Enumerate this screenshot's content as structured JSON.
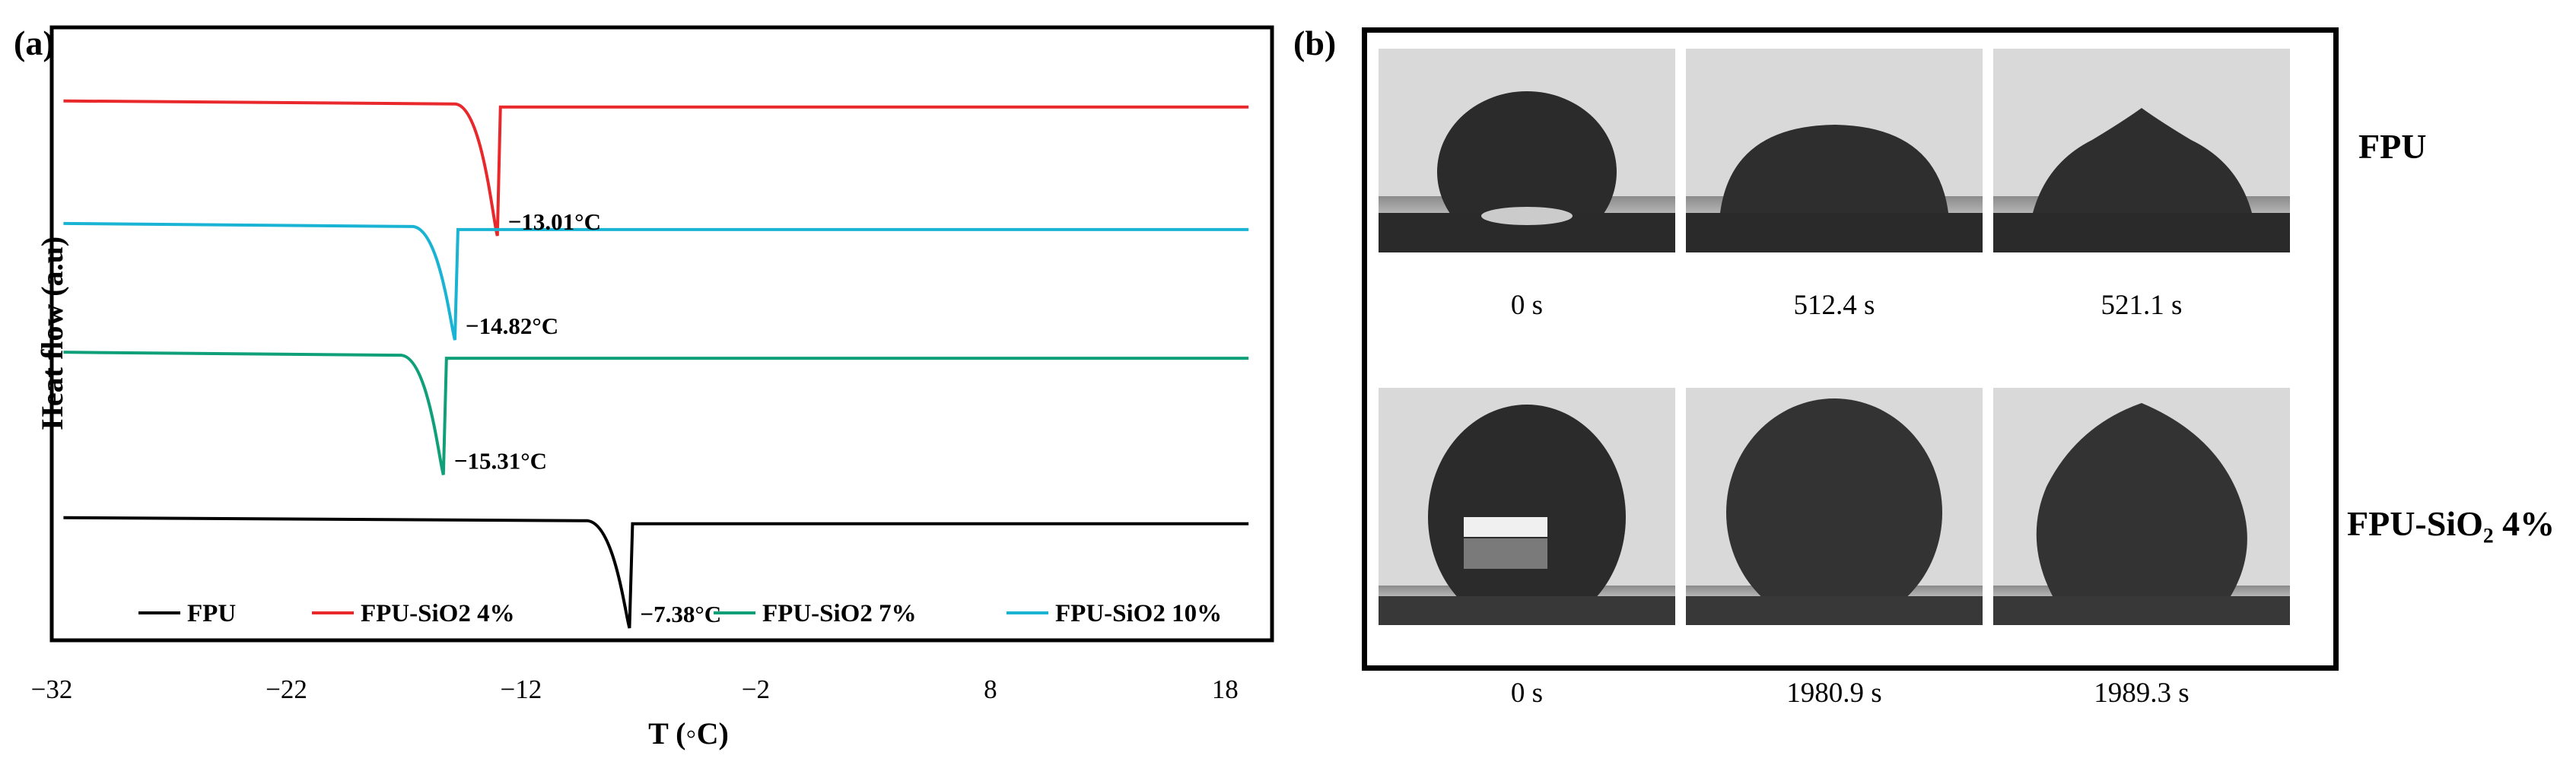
{
  "panel_a": {
    "label": "(a)",
    "chart_data": {
      "type": "line",
      "xlabel": "T (◦C)",
      "ylabel": "Heat flow (a.u)",
      "xlim": [
        -32,
        20
      ],
      "x_ticks": [
        "−32",
        "−22",
        "−12",
        "−2",
        "8",
        "18"
      ],
      "x_tick_values": [
        -32,
        -22,
        -12,
        -2,
        8,
        18
      ],
      "legend_position": "bottom",
      "series": [
        {
          "name": "FPU-SiO2 4%",
          "color": "#e8282b",
          "baseline": 0.88,
          "peak_x": -13.01,
          "peak_depth": 0.22,
          "peak_label": "−13.01°C"
        },
        {
          "name": "FPU-SiO2 10%",
          "color": "#19b3d4",
          "baseline": 0.68,
          "peak_x": -14.82,
          "peak_depth": 0.19,
          "peak_label": "−14.82°C"
        },
        {
          "name": "FPU-SiO2 7%",
          "color": "#0fa07a",
          "baseline": 0.47,
          "peak_x": -15.31,
          "peak_depth": 0.2,
          "peak_label": "−15.31°C"
        },
        {
          "name": "FPU",
          "color": "#000000",
          "baseline": 0.2,
          "peak_x": -7.38,
          "peak_depth": 0.18,
          "peak_label": "−7.38°C"
        }
      ],
      "legend": [
        {
          "label": "FPU",
          "color": "#000000"
        },
        {
          "label": "FPU-SiO2 4%",
          "color": "#e8282b"
        },
        {
          "label": "FPU-SiO2 7%",
          "color": "#0fa07a"
        },
        {
          "label": "FPU-SiO2 10%",
          "color": "#19b3d4"
        }
      ]
    }
  },
  "panel_b": {
    "label": "(b)",
    "rows": [
      {
        "sample": "FPU",
        "times": [
          "0 s",
          "512.4 s",
          "521.1 s"
        ]
      },
      {
        "sample": "FPU-SiO₂ 4%",
        "times": [
          "0 s",
          "1980.9 s",
          "1989.3 s"
        ]
      }
    ]
  }
}
